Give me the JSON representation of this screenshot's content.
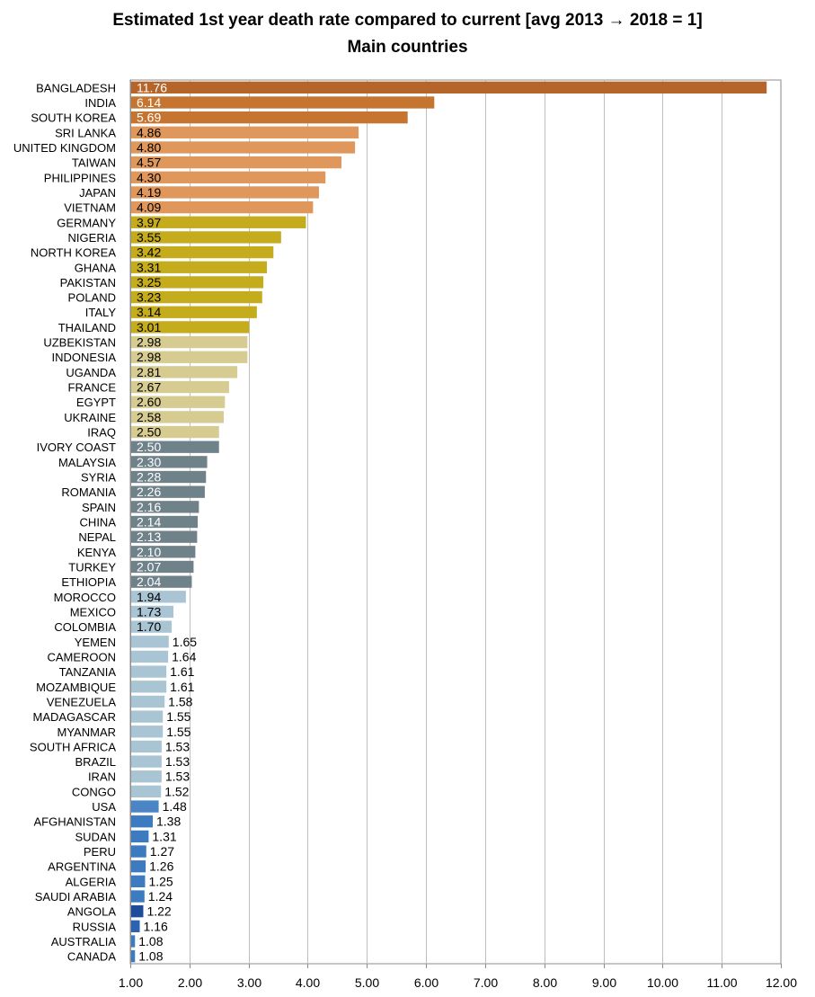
{
  "chart_data": {
    "type": "bar",
    "orientation": "horizontal",
    "title": "Estimated 1st year death rate compared to current [avg 2013 → 2018 = 1]",
    "subtitle": "Main countries",
    "categories": [
      "BANGLADESH",
      "INDIA",
      "SOUTH KOREA",
      "SRI LANKA",
      "UNITED KINGDOM",
      "TAIWAN",
      "PHILIPPINES",
      "JAPAN",
      "VIETNAM",
      "GERMANY",
      "NIGERIA",
      "NORTH KOREA",
      "GHANA",
      "PAKISTAN",
      "POLAND",
      "ITALY",
      "THAILAND",
      "UZBEKISTAN",
      "INDONESIA",
      "UGANDA",
      "FRANCE",
      "EGYPT",
      "UKRAINE",
      "IRAQ",
      "IVORY COAST",
      "MALAYSIA",
      "SYRIA",
      "ROMANIA",
      "SPAIN",
      "CHINA",
      "NEPAL",
      "KENYA",
      "TURKEY",
      "ETHIOPIA",
      "MOROCCO",
      "MEXICO",
      "COLOMBIA",
      "YEMEN",
      "CAMEROON",
      "TANZANIA",
      "MOZAMBIQUE",
      "VENEZUELA",
      "MADAGASCAR",
      "MYANMAR",
      "SOUTH AFRICA",
      "BRAZIL",
      "IRAN",
      "CONGO",
      "USA",
      "AFGHANISTAN",
      "SUDAN",
      "PERU",
      "ARGENTINA",
      "ALGERIA",
      "SAUDI ARABIA",
      "ANGOLA",
      "RUSSIA",
      "AUSTRALIA",
      "CANADA"
    ],
    "values": [
      11.76,
      6.14,
      5.69,
      4.86,
      4.8,
      4.57,
      4.3,
      4.19,
      4.09,
      3.97,
      3.55,
      3.42,
      3.31,
      3.25,
      3.23,
      3.14,
      3.01,
      2.98,
      2.98,
      2.81,
      2.67,
      2.6,
      2.58,
      2.5,
      2.5,
      2.3,
      2.28,
      2.26,
      2.16,
      2.14,
      2.13,
      2.1,
      2.07,
      2.04,
      1.94,
      1.73,
      1.7,
      1.65,
      1.64,
      1.61,
      1.61,
      1.58,
      1.55,
      1.55,
      1.53,
      1.53,
      1.53,
      1.52,
      1.48,
      1.38,
      1.31,
      1.27,
      1.26,
      1.25,
      1.24,
      1.22,
      1.16,
      1.08,
      1.08
    ],
    "value_labels": [
      "11.76",
      "6.14",
      "5.69",
      "4.86",
      "4.80",
      "4.57",
      "4.30",
      "4.19",
      "4.09",
      "3.97",
      "3.55",
      "3.42",
      "3.31",
      "3.25",
      "3.23",
      "3.14",
      "3.01",
      "2.98",
      "2.98",
      "2.81",
      "2.67",
      "2.60",
      "2.58",
      "2.50",
      "2.50",
      "2.30",
      "2.28",
      "2.26",
      "2.16",
      "2.14",
      "2.13",
      "2.10",
      "2.07",
      "2.04",
      "1.94",
      "1.73",
      "1.70",
      "1.65",
      "1.64",
      "1.61",
      "1.61",
      "1.58",
      "1.55",
      "1.55",
      "1.53",
      "1.53",
      "1.53",
      "1.52",
      "1.48",
      "1.38",
      "1.31",
      "1.27",
      "1.26",
      "1.25",
      "1.24",
      "1.22",
      "1.16",
      "1.08",
      "1.08"
    ],
    "colors": [
      "#b5652a",
      "#c57530",
      "#c57530",
      "#e0975c",
      "#e0975c",
      "#e0975c",
      "#e0975c",
      "#e0975c",
      "#e0975c",
      "#c4ac1c",
      "#c4ac1c",
      "#c4ac1c",
      "#c4ac1c",
      "#c4ac1c",
      "#c4ac1c",
      "#c4ac1c",
      "#c4ac1c",
      "#d6cb90",
      "#d6cb90",
      "#d6cb90",
      "#d6cb90",
      "#d6cb90",
      "#d6cb90",
      "#d6cb90",
      "#6f8189",
      "#6f8189",
      "#6f8189",
      "#6f8189",
      "#6f8189",
      "#6f8189",
      "#6f8189",
      "#6f8189",
      "#6f8189",
      "#6f8189",
      "#a9c4d2",
      "#a9c4d2",
      "#a9c4d2",
      "#a9c4d2",
      "#a9c4d2",
      "#a9c4d2",
      "#a9c4d2",
      "#a9c4d2",
      "#a9c4d2",
      "#a9c4d2",
      "#a9c4d2",
      "#a9c4d2",
      "#a9c4d2",
      "#a9c4d2",
      "#4a86c6",
      "#3d7bc0",
      "#3d7bc0",
      "#3d7bc0",
      "#3d7bc0",
      "#3d7bc0",
      "#3d7bc0",
      "#1f4c9a",
      "#2b62b2",
      "#3d7bc0",
      "#3d7bc0"
    ],
    "label_colors": [
      "#ffffff",
      "#ffffff",
      "#ffffff",
      "#000000",
      "#000000",
      "#000000",
      "#000000",
      "#000000",
      "#000000",
      "#000000",
      "#000000",
      "#000000",
      "#000000",
      "#000000",
      "#000000",
      "#000000",
      "#000000",
      "#000000",
      "#000000",
      "#000000",
      "#000000",
      "#000000",
      "#000000",
      "#000000",
      "#ffffff",
      "#ffffff",
      "#ffffff",
      "#ffffff",
      "#ffffff",
      "#ffffff",
      "#ffffff",
      "#ffffff",
      "#ffffff",
      "#ffffff",
      "#000000",
      "#000000",
      "#000000",
      "#000000",
      "#000000",
      "#000000",
      "#000000",
      "#000000",
      "#000000",
      "#000000",
      "#000000",
      "#000000",
      "#000000",
      "#000000",
      "#000000",
      "#000000",
      "#000000",
      "#000000",
      "#000000",
      "#000000",
      "#000000",
      "#000000",
      "#000000",
      "#000000",
      "#000000"
    ],
    "xlim": [
      1,
      12
    ],
    "xticks": [
      "1.00",
      "2.00",
      "3.00",
      "4.00",
      "5.00",
      "6.00",
      "7.00",
      "8.00",
      "9.00",
      "10.00",
      "11.00",
      "12.00"
    ],
    "grid": true,
    "xlabel": "",
    "ylabel": ""
  }
}
